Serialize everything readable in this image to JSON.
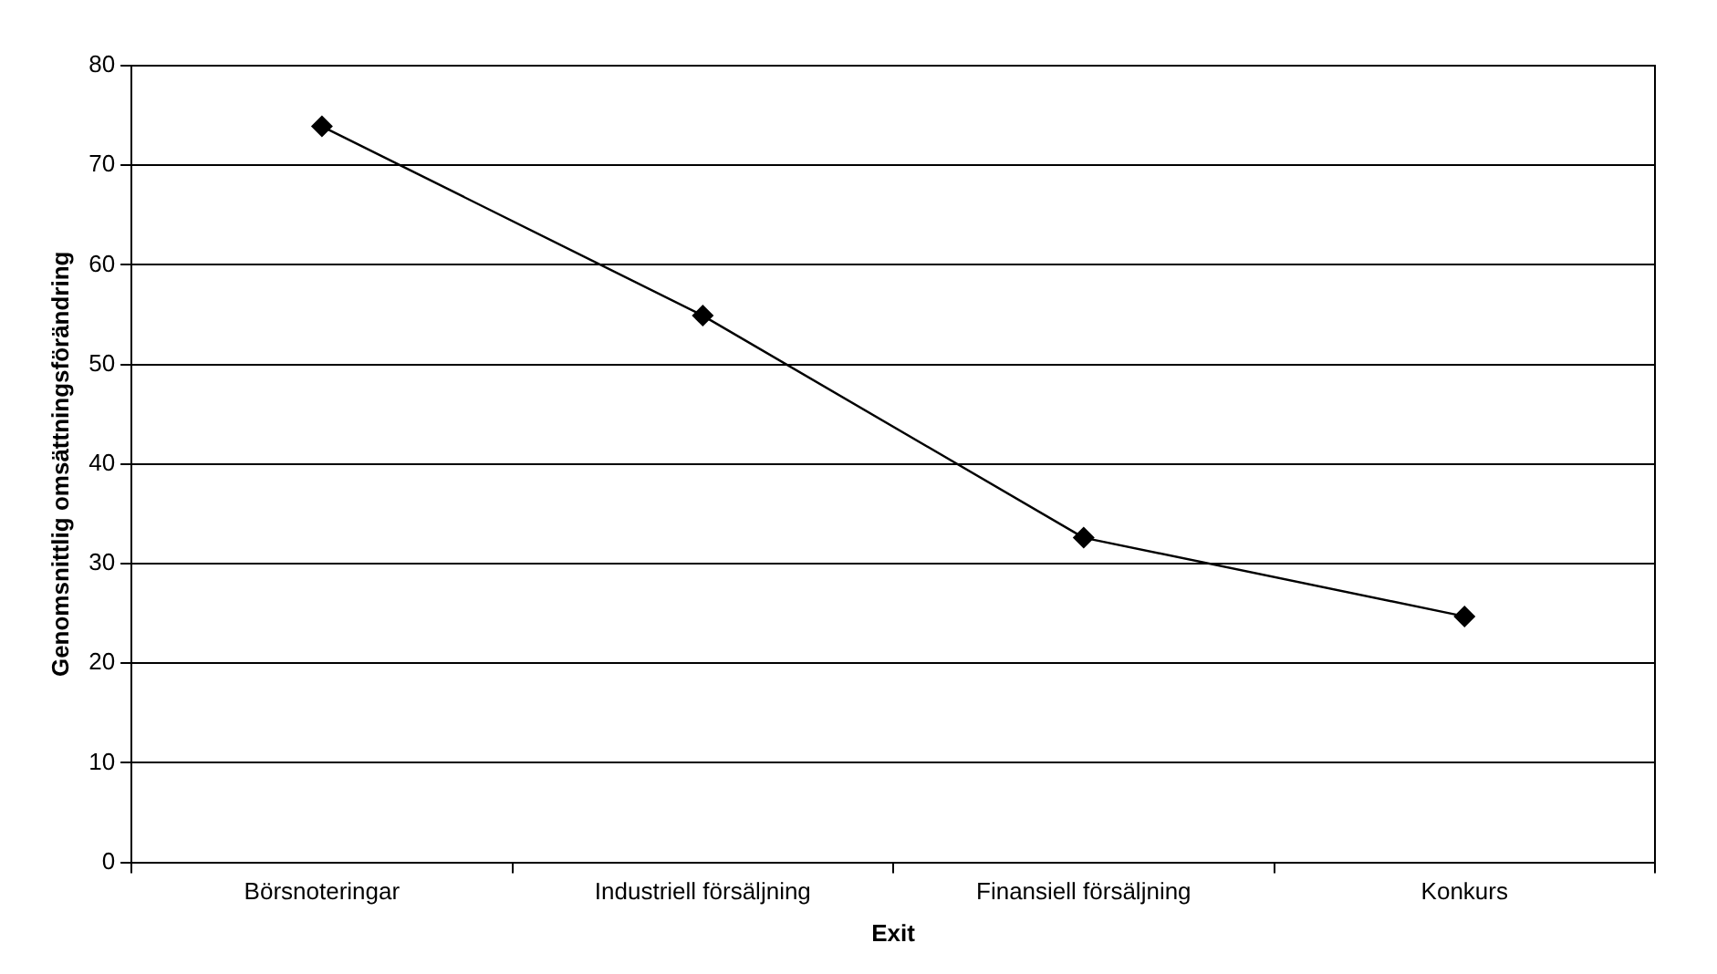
{
  "chart_data": {
    "type": "line",
    "xlabel": "Exit",
    "ylabel": "Genomsnittlig omsättningsförändring",
    "categories": [
      "Börsnoteringar",
      "Industriell försäljning",
      "Finansiell försäljning",
      "Konkurs"
    ],
    "series": [
      {
        "color": "#000000",
        "values": [
          73.9,
          54.9,
          32.6,
          24.7
        ]
      }
    ],
    "ylim": [
      0,
      80
    ],
    "yticks": [
      0,
      10,
      20,
      30,
      40,
      50,
      60,
      70,
      80
    ],
    "grid": "y",
    "marker": "diamond",
    "line_style": "solid"
  }
}
